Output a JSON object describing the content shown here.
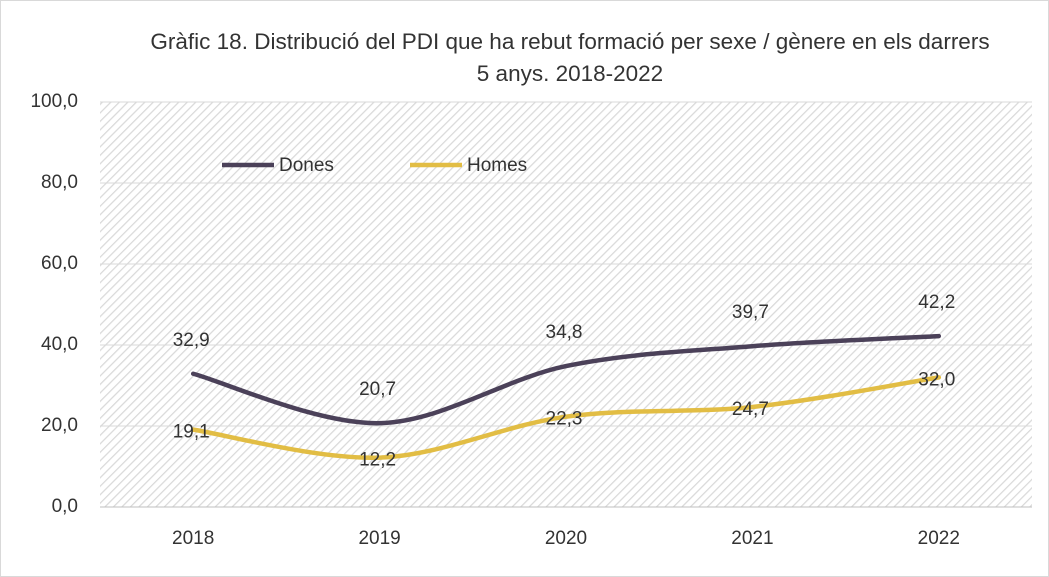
{
  "chart_data": {
    "type": "line",
    "title": "Gràfic 18. Distribució del PDI que ha rebut formació per sexe / gènere en els darrers 5 anys. 2018-2022",
    "categories": [
      "2018",
      "2019",
      "2020",
      "2021",
      "2022"
    ],
    "series": [
      {
        "name": "Dones",
        "color": "#4b4159",
        "values": [
          32.9,
          20.7,
          34.8,
          39.7,
          42.2
        ],
        "value_labels": [
          "32,9",
          "20,7",
          "34,8",
          "39,7",
          "42,2"
        ]
      },
      {
        "name": "Homes",
        "color": "#e2bd44",
        "values": [
          19.1,
          12.2,
          22.3,
          24.7,
          32.0
        ],
        "value_labels": [
          "19,1",
          "12,2",
          "22,3",
          "24,7",
          "32,0"
        ]
      }
    ],
    "ylim": [
      0,
      100
    ],
    "yticks": [
      {
        "value": 0,
        "label": "0,0"
      },
      {
        "value": 20,
        "label": "20,0"
      },
      {
        "value": 40,
        "label": "40,0"
      },
      {
        "value": 60,
        "label": "60,0"
      },
      {
        "value": 80,
        "label": "80,0"
      },
      {
        "value": 100,
        "label": "100,0"
      }
    ],
    "grid": true,
    "smooth": true,
    "legend": "upper left"
  }
}
